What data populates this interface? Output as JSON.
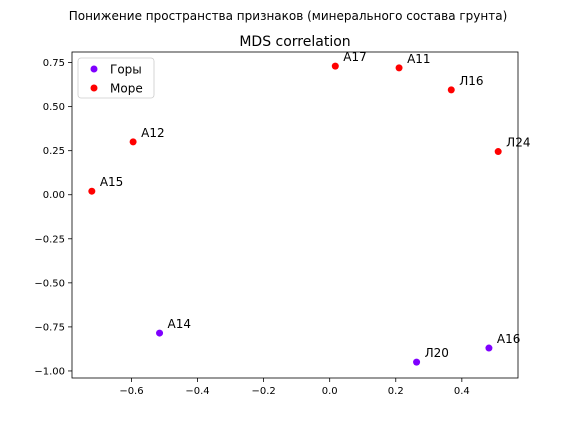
{
  "suptitle": "Понижение пространства признаков (минерального состава грунта)",
  "chart_data": {
    "type": "scatter",
    "title": "MDS correlation",
    "xlabel": "",
    "ylabel": "",
    "xlim": [
      -0.78,
      0.57
    ],
    "ylim": [
      -1.04,
      0.81
    ],
    "xticks": [
      -0.6,
      -0.4,
      -0.2,
      0.0,
      0.2,
      0.4
    ],
    "xtick_labels": [
      "−0.6",
      "−0.4",
      "−0.2",
      "0.0",
      "0.2",
      "0.4"
    ],
    "yticks": [
      -1.0,
      -0.75,
      -0.5,
      -0.25,
      0.0,
      0.25,
      0.5,
      0.75
    ],
    "ytick_labels": [
      "−1.00",
      "−0.75",
      "−0.50",
      "−0.25",
      "0.00",
      "0.25",
      "0.50",
      "0.75"
    ],
    "grid": false,
    "legend_position": "top-left",
    "series": [
      {
        "name": "Горы",
        "color": "#7f00ff",
        "points": [
          {
            "label": "А14",
            "x": -0.515,
            "y": -0.785
          },
          {
            "label": "Л20",
            "x": 0.263,
            "y": -0.95
          },
          {
            "label": "А16",
            "x": 0.482,
            "y": -0.87
          }
        ]
      },
      {
        "name": "Море",
        "color": "#ff0000",
        "points": [
          {
            "label": "А17",
            "x": 0.017,
            "y": 0.73
          },
          {
            "label": "А11",
            "x": 0.21,
            "y": 0.72
          },
          {
            "label": "Л16",
            "x": 0.368,
            "y": 0.595
          },
          {
            "label": "Л24",
            "x": 0.51,
            "y": 0.245
          },
          {
            "label": "А12",
            "x": -0.595,
            "y": 0.3
          },
          {
            "label": "А15",
            "x": -0.72,
            "y": 0.02
          }
        ]
      }
    ]
  }
}
